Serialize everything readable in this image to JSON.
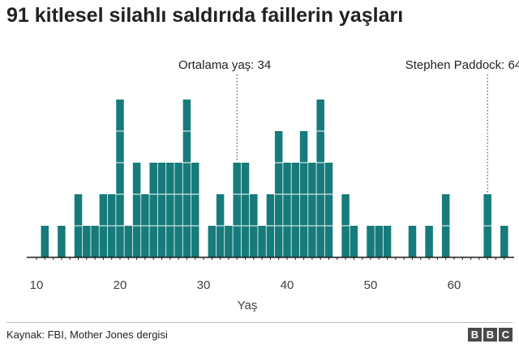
{
  "title": "91 kitlesel silahlı saldırıda faillerin yaşları",
  "source": "Kaynak: FBI, Mother Jones dergisi",
  "logo": [
    "B",
    "B",
    "C"
  ],
  "colors": {
    "bar": "#177b7b",
    "axis": "#1a1a1a",
    "annotation_line": "#333333"
  },
  "chart_data": {
    "type": "bar",
    "xlabel": "Yaş",
    "ylabel": "",
    "xlim": [
      10,
      66
    ],
    "x_ticks": [
      10,
      20,
      30,
      40,
      50,
      60
    ],
    "grid": false,
    "counts": [
      {
        "age": 11,
        "count": 1
      },
      {
        "age": 13,
        "count": 1
      },
      {
        "age": 15,
        "count": 2
      },
      {
        "age": 16,
        "count": 1
      },
      {
        "age": 17,
        "count": 1
      },
      {
        "age": 18,
        "count": 2
      },
      {
        "age": 19,
        "count": 2
      },
      {
        "age": 20,
        "count": 5
      },
      {
        "age": 21,
        "count": 1
      },
      {
        "age": 22,
        "count": 3
      },
      {
        "age": 23,
        "count": 2
      },
      {
        "age": 24,
        "count": 3
      },
      {
        "age": 25,
        "count": 3
      },
      {
        "age": 26,
        "count": 3
      },
      {
        "age": 27,
        "count": 3
      },
      {
        "age": 28,
        "count": 5
      },
      {
        "age": 29,
        "count": 3
      },
      {
        "age": 31,
        "count": 1
      },
      {
        "age": 32,
        "count": 2
      },
      {
        "age": 33,
        "count": 1
      },
      {
        "age": 34,
        "count": 3
      },
      {
        "age": 35,
        "count": 3
      },
      {
        "age": 36,
        "count": 2
      },
      {
        "age": 37,
        "count": 1
      },
      {
        "age": 38,
        "count": 2
      },
      {
        "age": 39,
        "count": 4
      },
      {
        "age": 40,
        "count": 3
      },
      {
        "age": 41,
        "count": 3
      },
      {
        "age": 42,
        "count": 4
      },
      {
        "age": 43,
        "count": 3
      },
      {
        "age": 44,
        "count": 5
      },
      {
        "age": 45,
        "count": 3
      },
      {
        "age": 47,
        "count": 2
      },
      {
        "age": 48,
        "count": 1
      },
      {
        "age": 50,
        "count": 1
      },
      {
        "age": 51,
        "count": 1
      },
      {
        "age": 52,
        "count": 1
      },
      {
        "age": 55,
        "count": 1
      },
      {
        "age": 57,
        "count": 1
      },
      {
        "age": 59,
        "count": 2
      },
      {
        "age": 64,
        "count": 2
      },
      {
        "age": 66,
        "count": 1
      }
    ],
    "annotations": [
      {
        "label": "Ortalama yaş: 34",
        "age": 34
      },
      {
        "label": "Stephen Paddock: 64",
        "age": 64
      }
    ]
  }
}
